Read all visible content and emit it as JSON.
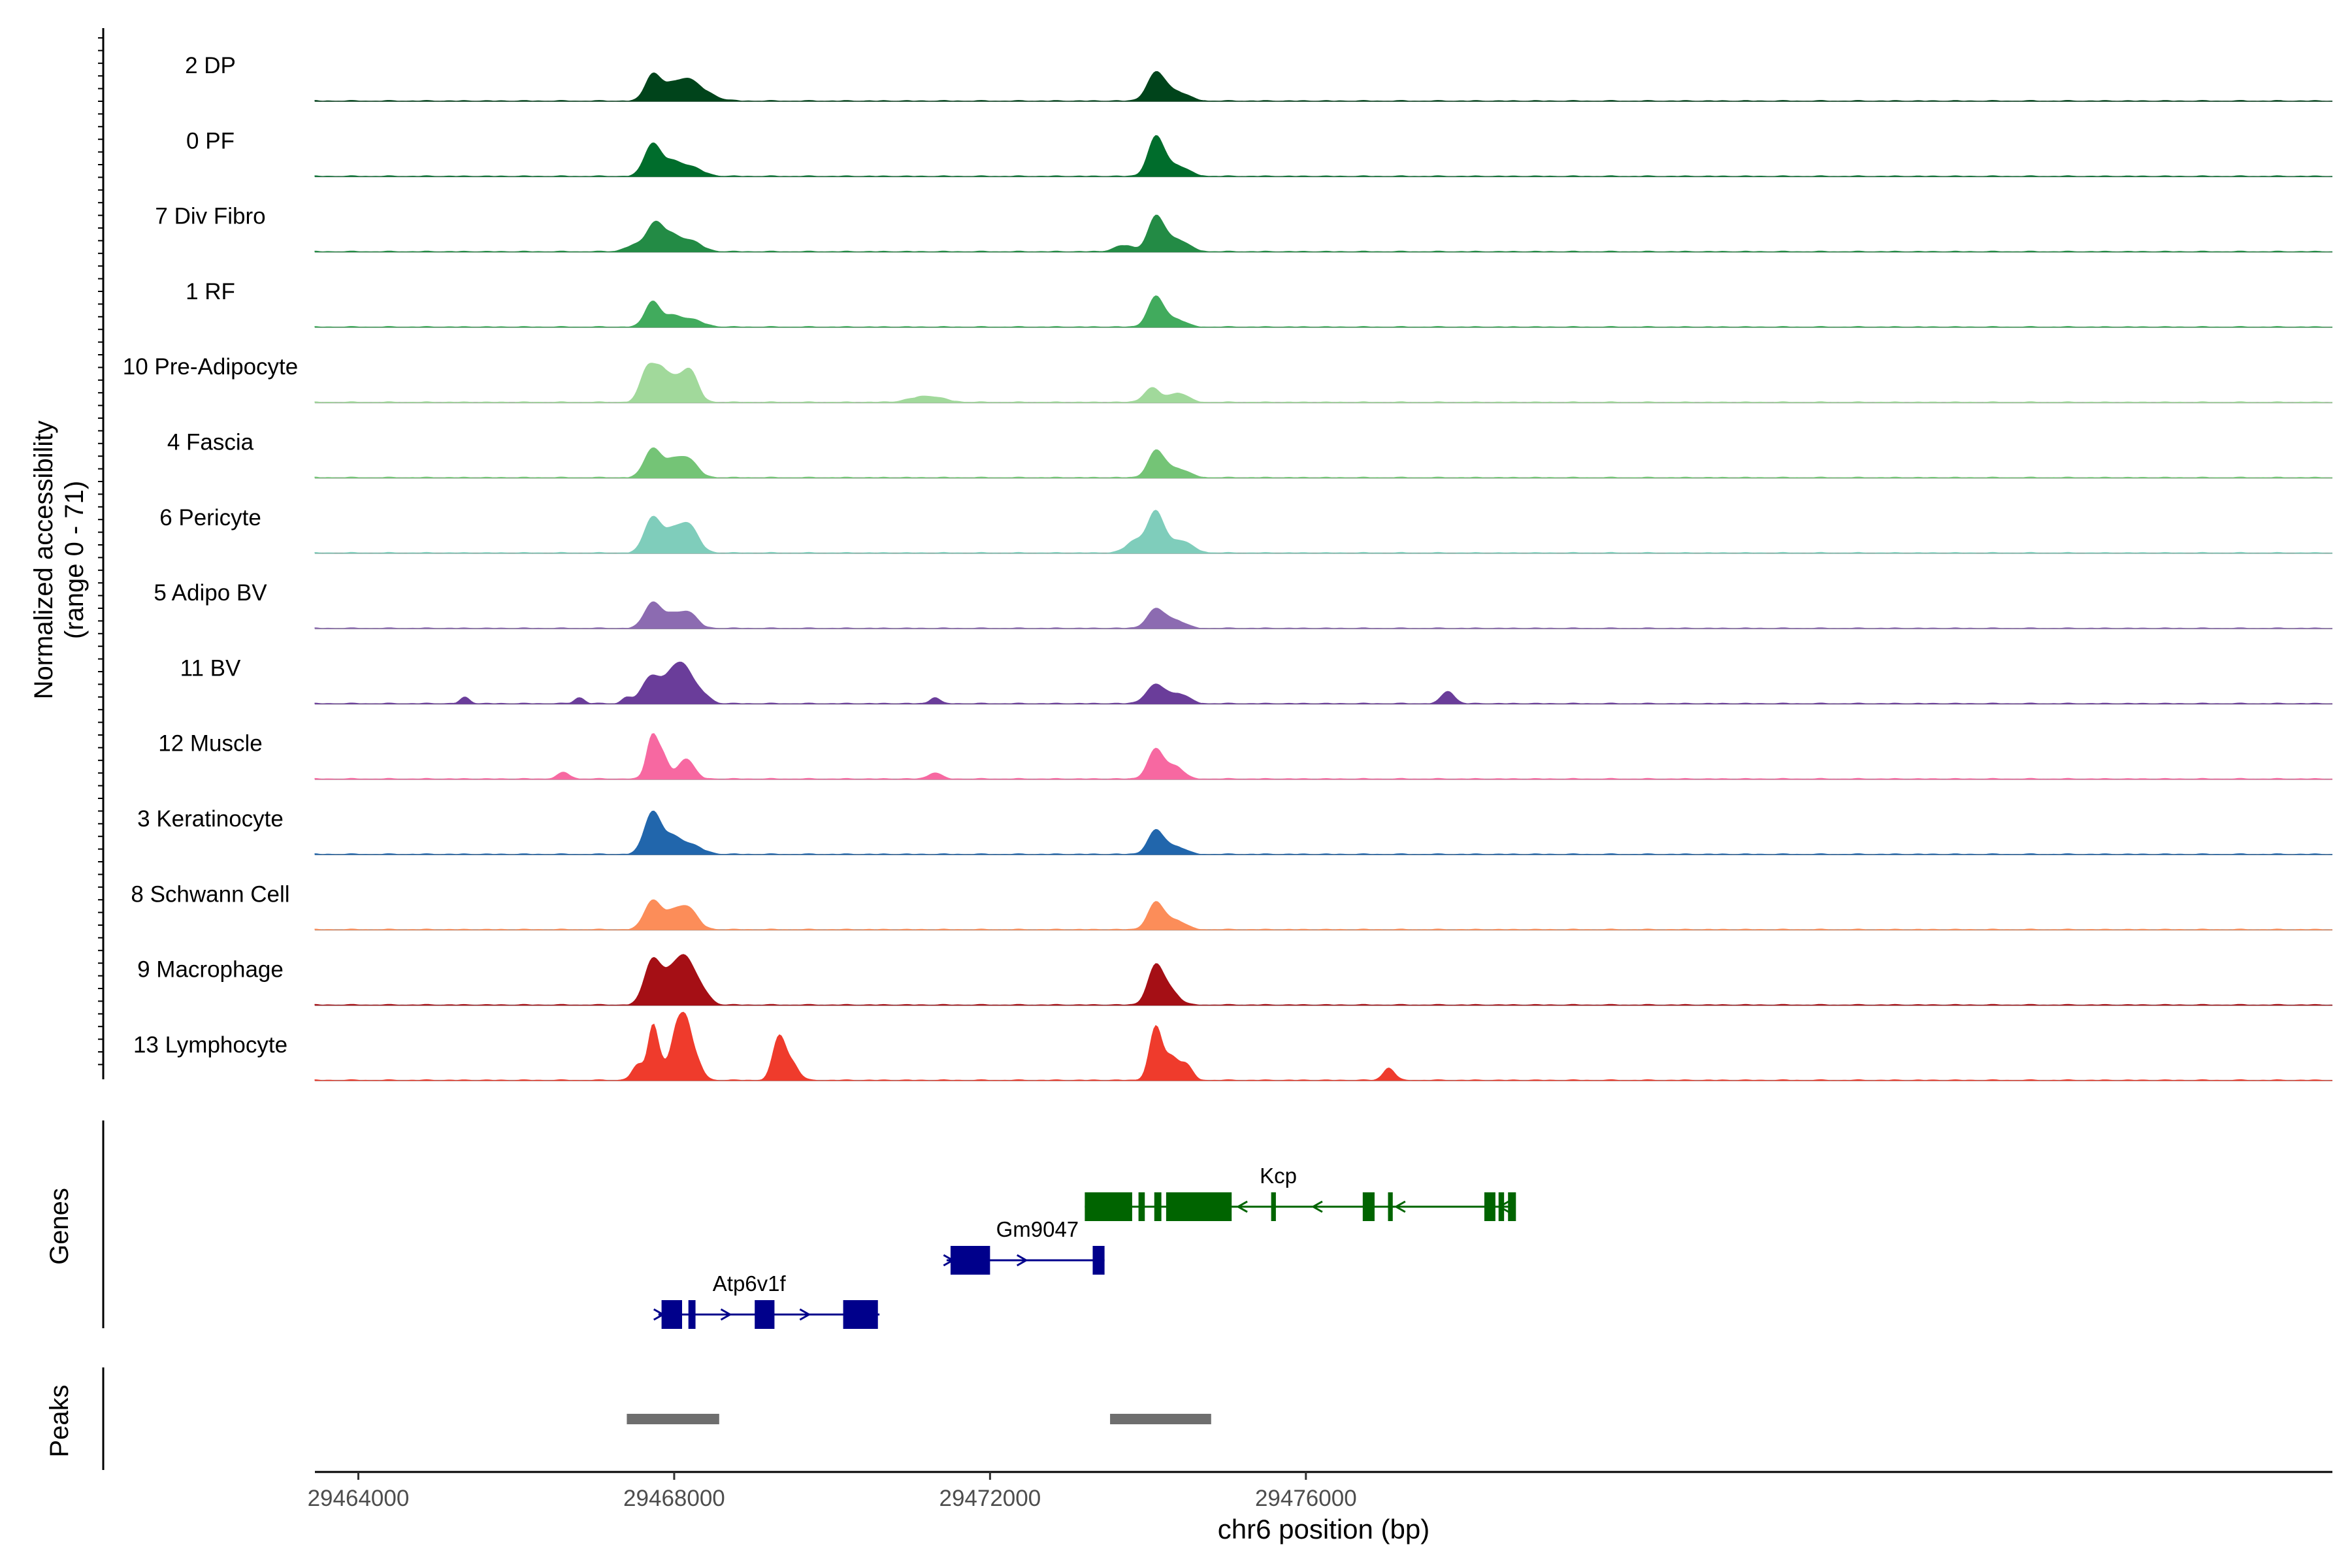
{
  "chart_data": {
    "type": "area",
    "title": "",
    "ylabel_lines": [
      "Normalized accessibility",
      "(range 0 - 71)"
    ],
    "y_range": [
      0,
      71
    ],
    "xlabel": "chr6 position (bp)",
    "xlim": [
      29463450,
      29489000
    ],
    "x_ticks": [
      29464000,
      29468000,
      29472000,
      29476000
    ],
    "x_tick_labels": [
      "29464000",
      "29468000",
      "29472000",
      "29476000"
    ],
    "tracks": [
      {
        "name": "2 DP",
        "color": "#00441b",
        "peaks": [
          [
            29467720,
            16,
            90
          ],
          [
            29467920,
            9,
            110
          ],
          [
            29468150,
            11,
            120
          ],
          [
            29468350,
            6,
            160
          ],
          [
            29474100,
            17,
            110
          ],
          [
            29474350,
            6,
            150
          ]
        ]
      },
      {
        "name": "0 PF",
        "color": "#006d2c",
        "peaks": [
          [
            29467720,
            20,
            100
          ],
          [
            29467950,
            8,
            120
          ],
          [
            29468200,
            6,
            150
          ],
          [
            29474100,
            24,
            100
          ],
          [
            29474350,
            7,
            150
          ]
        ]
      },
      {
        "name": "7 Div Fibro",
        "color": "#238b45",
        "peaks": [
          [
            29467500,
            4,
            120
          ],
          [
            29467750,
            17,
            100
          ],
          [
            29467950,
            9,
            110
          ],
          [
            29468200,
            7,
            140
          ],
          [
            29473700,
            4,
            120
          ],
          [
            29474100,
            21,
            100
          ],
          [
            29474350,
            8,
            150
          ]
        ]
      },
      {
        "name": "1 RF",
        "color": "#41ab5d",
        "peaks": [
          [
            29467720,
            16,
            90
          ],
          [
            29467950,
            6,
            110
          ],
          [
            29468200,
            5,
            150
          ],
          [
            29474100,
            19,
            100
          ],
          [
            29474350,
            5,
            120
          ]
        ]
      },
      {
        "name": "10 Pre-Adipocyte",
        "color": "#a1d99b",
        "peaks": [
          [
            29467660,
            21,
            90
          ],
          [
            29467830,
            17,
            90
          ],
          [
            29468000,
            12,
            100
          ],
          [
            29468200,
            20,
            100
          ],
          [
            29474050,
            9,
            100
          ],
          [
            29474380,
            6,
            120
          ],
          [
            29471200,
            4,
            200
          ]
        ]
      },
      {
        "name": "4 Fascia",
        "color": "#74c476",
        "peaks": [
          [
            29467720,
            18,
            100
          ],
          [
            29467950,
            9,
            110
          ],
          [
            29468170,
            12,
            120
          ],
          [
            29474100,
            16,
            100
          ],
          [
            29474350,
            6,
            150
          ]
        ]
      },
      {
        "name": "6 Pericyte",
        "color": "#7fcdbb",
        "peaks": [
          [
            29467720,
            22,
            100
          ],
          [
            29467950,
            12,
            110
          ],
          [
            29468180,
            18,
            120
          ],
          [
            29473850,
            8,
            120
          ],
          [
            29474100,
            25,
            100
          ],
          [
            29474400,
            8,
            150
          ]
        ]
      },
      {
        "name": "5 Adipo BV",
        "color": "#8c6bb1",
        "peaks": [
          [
            29467720,
            16,
            100
          ],
          [
            29467950,
            8,
            110
          ],
          [
            29468180,
            10,
            110
          ],
          [
            29474100,
            12,
            110
          ],
          [
            29474350,
            5,
            120
          ]
        ]
      },
      {
        "name": "11 BV",
        "color": "#6a3d9a",
        "peaks": [
          [
            29467700,
            17,
            110
          ],
          [
            29467950,
            15,
            110
          ],
          [
            29468130,
            21,
            110
          ],
          [
            29468350,
            6,
            100
          ],
          [
            29465350,
            4,
            60
          ],
          [
            29466800,
            4,
            60
          ],
          [
            29467400,
            4,
            60
          ],
          [
            29474100,
            12,
            120
          ],
          [
            29474400,
            6,
            120
          ],
          [
            29477800,
            8,
            80
          ],
          [
            29471300,
            4,
            60
          ]
        ]
      },
      {
        "name": "12 Muscle",
        "color": "#f768a1",
        "peaks": [
          [
            29467720,
            27,
            70
          ],
          [
            29467860,
            14,
            70
          ],
          [
            29468150,
            13,
            100
          ],
          [
            29474100,
            19,
            100
          ],
          [
            29474350,
            8,
            100
          ],
          [
            29466600,
            4,
            80
          ],
          [
            29471300,
            4,
            80
          ]
        ]
      },
      {
        "name": "3 Keratinocyte",
        "color": "#2166ac",
        "peaks": [
          [
            29467720,
            26,
            100
          ],
          [
            29467950,
            10,
            120
          ],
          [
            29468200,
            6,
            150
          ],
          [
            29474100,
            15,
            100
          ],
          [
            29474350,
            5,
            120
          ]
        ]
      },
      {
        "name": "8 Schwann Cell",
        "color": "#fc8d59",
        "peaks": [
          [
            29467720,
            18,
            100
          ],
          [
            29467950,
            9,
            110
          ],
          [
            29468170,
            14,
            120
          ],
          [
            29474100,
            17,
            100
          ],
          [
            29474350,
            6,
            120
          ]
        ]
      },
      {
        "name": "9 Macrophage",
        "color": "#a50f15",
        "peaks": [
          [
            29467720,
            28,
            100
          ],
          [
            29467920,
            14,
            100
          ],
          [
            29468130,
            30,
            120
          ],
          [
            29468350,
            8,
            100
          ],
          [
            29474100,
            25,
            100
          ],
          [
            29474300,
            8,
            100
          ]
        ]
      },
      {
        "name": "13 Lymphocyte",
        "color": "#ef3b2c",
        "peaks": [
          [
            29467730,
            32,
            60
          ],
          [
            29467550,
            10,
            80
          ],
          [
            29467850,
            10,
            80
          ],
          [
            29468030,
            29,
            70
          ],
          [
            29468150,
            32,
            70
          ],
          [
            29468280,
            12,
            80
          ],
          [
            29469330,
            28,
            80
          ],
          [
            29469500,
            10,
            80
          ],
          [
            29474100,
            34,
            80
          ],
          [
            29474300,
            14,
            80
          ],
          [
            29474480,
            10,
            80
          ],
          [
            29477050,
            8,
            70
          ]
        ]
      }
    ],
    "genes": [
      {
        "name": "Kcp",
        "strand": "-",
        "color": "#006400",
        "start": 29473200,
        "end": 29478600,
        "exons": [
          [
            29473200,
            29473800
          ],
          [
            29473880,
            29473960
          ],
          [
            29474080,
            29474170
          ],
          [
            29474230,
            29475060
          ],
          [
            29475560,
            29475620
          ],
          [
            29476720,
            29476870
          ],
          [
            29477040,
            29477100
          ],
          [
            29478260,
            29478400
          ],
          [
            29478440,
            29478510
          ],
          [
            29478560,
            29478660
          ]
        ],
        "arrows": [
          29475200,
          29476150,
          29477200,
          29478510
        ]
      },
      {
        "name": "Gm9047",
        "strand": "+",
        "color": "#00008b",
        "start": 29471450,
        "end": 29473450,
        "exons": [
          [
            29471500,
            29472000
          ],
          [
            29473300,
            29473450
          ]
        ],
        "arrows": [
          29471470,
          29472400
        ]
      },
      {
        "name": "Atp6v1f",
        "strand": "+",
        "color": "#00008b",
        "start": 29467800,
        "end": 29470600,
        "exons": [
          [
            29467840,
            29468100
          ],
          [
            29468180,
            29468270
          ],
          [
            29469020,
            29469270
          ],
          [
            29470140,
            29470580
          ]
        ],
        "arrows": [
          29467800,
          29468650,
          29469650
        ]
      }
    ],
    "peak_regions": [
      [
        29467400,
        29468570
      ],
      [
        29473520,
        29474800
      ]
    ],
    "panel_labels": [
      "Genes",
      "Peaks"
    ]
  }
}
